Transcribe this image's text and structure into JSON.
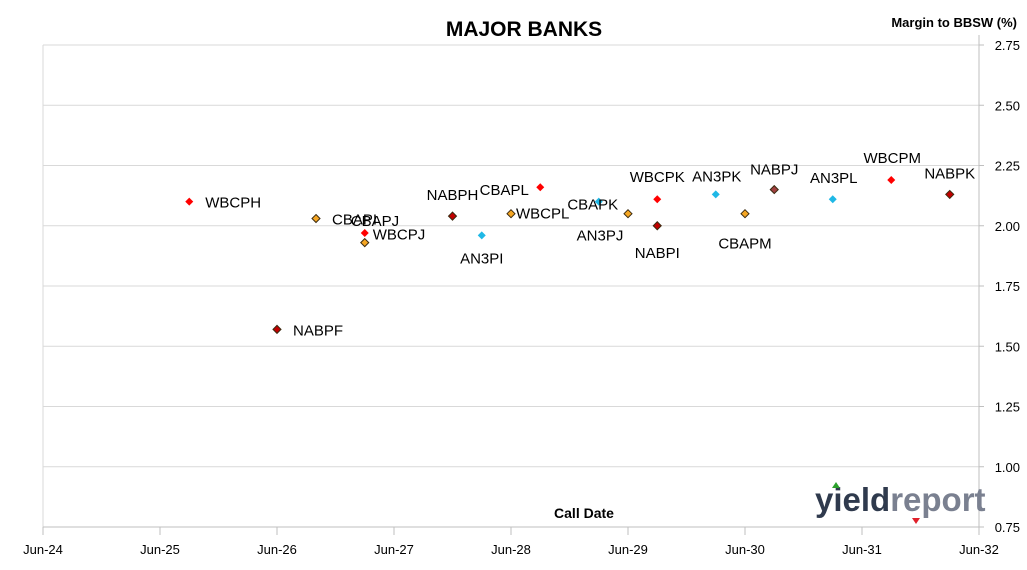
{
  "chart_data": {
    "type": "scatter",
    "title": "MAJOR BANKS",
    "xlabel": "Call Date",
    "ylabel": "Margin to BBSW (%)",
    "x_ticks": [
      "Jun-24",
      "Jun-25",
      "Jun-26",
      "Jun-27",
      "Jun-28",
      "Jun-29",
      "Jun-30",
      "Jun-31",
      "Jun-32"
    ],
    "xlim": [
      "Jun-24",
      "Jun-32"
    ],
    "ylim": [
      0.75,
      2.75
    ],
    "y_ticks": [
      "0.75",
      "1.00",
      "1.25",
      "1.50",
      "1.75",
      "2.00",
      "2.25",
      "2.50",
      "2.75"
    ],
    "grid": "horizontal",
    "points": [
      {
        "label": "WBCPH",
        "x": "2025-09",
        "y": 2.1,
        "color": "#ff0000"
      },
      {
        "label": "NABPF",
        "x": "2026-06",
        "y": 1.57,
        "color": "#c00000"
      },
      {
        "label": "CBAPI",
        "x": "2026-10",
        "y": 2.03,
        "color": "#f5a623"
      },
      {
        "label": "CBAPJ",
        "x": "2027-03",
        "y": 1.97,
        "color": "#ff0000"
      },
      {
        "label": "WBCPJ",
        "x": "2027-03",
        "y": 1.93,
        "color": "#f5a623"
      },
      {
        "label": "NABPH",
        "x": "2027-12",
        "y": 2.04,
        "color": "#c00000"
      },
      {
        "label": "AN3PI",
        "x": "2028-03",
        "y": 1.96,
        "color": "#1fb8e6"
      },
      {
        "label": "WBCPL",
        "x": "2028-06",
        "y": 2.05,
        "color": "#f5a623"
      },
      {
        "label": "CBAPL",
        "x": "2028-09",
        "y": 2.16,
        "color": "#ff0000"
      },
      {
        "label": "CBAPK",
        "x": "2029-03",
        "y": 2.1,
        "color": "#1fb8e6"
      },
      {
        "label": "AN3PJ",
        "x": "2029-06",
        "y": 2.05,
        "color": "#f5a623"
      },
      {
        "label": "NABPI",
        "x": "2029-09",
        "y": 2.0,
        "color": "#c00000"
      },
      {
        "label": "WBCPK",
        "x": "2029-09",
        "y": 2.11,
        "color": "#ff0000"
      },
      {
        "label": "AN3PK",
        "x": "2030-03",
        "y": 2.13,
        "color": "#1fb8e6"
      },
      {
        "label": "CBAPM",
        "x": "2030-06",
        "y": 2.05,
        "color": "#f5a623"
      },
      {
        "label": "NABPJ",
        "x": "2030-09",
        "y": 2.15,
        "color": "#a04040"
      },
      {
        "label": "AN3PL",
        "x": "2031-03",
        "y": 2.11,
        "color": "#1fb8e6"
      },
      {
        "label": "WBCPM",
        "x": "2031-09",
        "y": 2.19,
        "color": "#ff0000"
      },
      {
        "label": "NABPK",
        "x": "2032-03",
        "y": 2.13,
        "color": "#c00000"
      }
    ]
  },
  "logo": {
    "text_a": "yield",
    "text_b": "report",
    "accent_up": "#2ca02c",
    "accent_down": "#e0202a"
  }
}
